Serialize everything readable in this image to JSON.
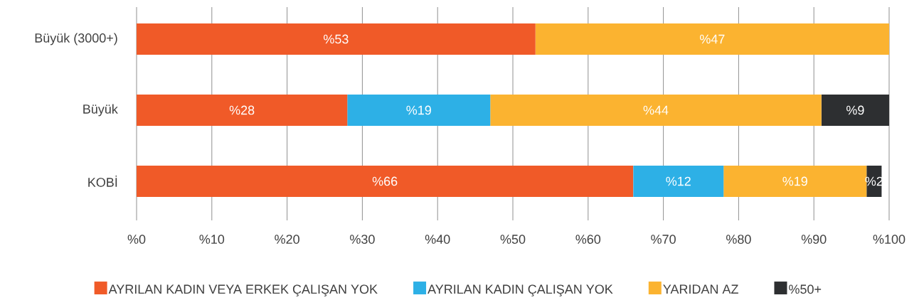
{
  "chart_data": {
    "type": "bar",
    "orientation": "horizontal",
    "stacked": true,
    "grid": "x",
    "legend": "bottom",
    "categories": [
      "Büyük (3000+)",
      "Büyük",
      "KOBİ"
    ],
    "xlim": [
      0,
      100
    ],
    "xticks": [
      {
        "value": 0,
        "label": "%0"
      },
      {
        "value": 10,
        "label": "%10"
      },
      {
        "value": 20,
        "label": "%20"
      },
      {
        "value": 30,
        "label": "%30"
      },
      {
        "value": 40,
        "label": "%40"
      },
      {
        "value": 50,
        "label": "%50"
      },
      {
        "value": 60,
        "label": "%60"
      },
      {
        "value": 70,
        "label": "%70"
      },
      {
        "value": 80,
        "label": "%80"
      },
      {
        "value": 90,
        "label": "%90"
      },
      {
        "value": 100,
        "label": "%100"
      }
    ],
    "series": [
      {
        "name": "AYRILAN KADIN VEYA ERKEK ÇALIŞAN YOK",
        "color": "#f05a28",
        "values": [
          53,
          28,
          66
        ],
        "value_labels": [
          "%53",
          "%28",
          "%66"
        ]
      },
      {
        "name": "AYRILAN KADIN ÇALIŞAN YOK",
        "color": "#2db0e6",
        "values": [
          null,
          19,
          12
        ],
        "value_labels": [
          null,
          "%19",
          "%12"
        ]
      },
      {
        "name": "YARIDAN AZ",
        "color": "#fbb330",
        "values": [
          47,
          44,
          19
        ],
        "value_labels": [
          "%47",
          "%44",
          "%19"
        ]
      },
      {
        "name": "%50+",
        "color": "#2d2f31",
        "values": [
          null,
          9,
          2
        ],
        "value_labels": [
          null,
          "%9",
          "%2"
        ]
      }
    ]
  }
}
